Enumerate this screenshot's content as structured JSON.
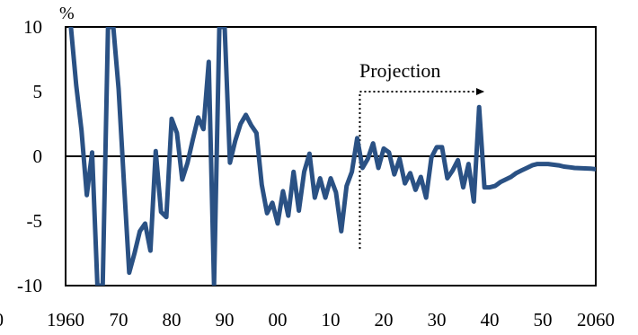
{
  "chart_data": {
    "type": "line",
    "title": "",
    "xlabel": "",
    "ylabel": "",
    "y_unit": "%",
    "xlim": [
      1960,
      2060
    ],
    "ylim": [
      -10,
      10
    ],
    "x_ticks": [
      "1960",
      "70",
      "80",
      "90",
      "00",
      "10",
      "20",
      "30",
      "40",
      "50",
      "2060"
    ],
    "y_ticks": [
      "10",
      "5",
      "0",
      "-5",
      "-10"
    ],
    "partial_left_tick": "0",
    "grid": false,
    "zero_line": true,
    "annotation": {
      "text": "Projection",
      "x": 2015.5
    },
    "series": [
      {
        "color": "#2a5184",
        "x": [
          1961,
          1962,
          1963,
          1964,
          1965,
          1966,
          1967,
          1968,
          1969,
          1970,
          1971,
          1972,
          1973,
          1974,
          1975,
          1976,
          1977,
          1978,
          1979,
          1980,
          1981,
          1982,
          1983,
          1984,
          1985,
          1986,
          1987,
          1988,
          1989,
          1990,
          1991,
          1992,
          1993,
          1994,
          1995,
          1996,
          1997,
          1998,
          1999,
          2000,
          2001,
          2002,
          2003,
          2004,
          2005,
          2006,
          2007,
          2008,
          2009,
          2010,
          2011,
          2012,
          2013,
          2014,
          2015,
          2016,
          2017,
          2018,
          2019,
          2020,
          2021,
          2022,
          2023,
          2024,
          2025,
          2026,
          2027,
          2028,
          2029,
          2030,
          2031,
          2032,
          2033,
          2034,
          2035,
          2036,
          2037,
          2038,
          2039,
          2040,
          2041,
          2042,
          2043,
          2044,
          2045,
          2046,
          2047,
          2048,
          2049,
          2050,
          2051,
          2052,
          2053,
          2054,
          2055,
          2056,
          2057,
          2058,
          2059,
          2060
        ],
        "y": [
          10,
          5.5,
          2,
          -3,
          0.3,
          -10,
          -10,
          10,
          10,
          5.2,
          -2,
          -9,
          -7.5,
          -5.8,
          -5.2,
          -7.3,
          0.4,
          -4.3,
          -4.7,
          2.9,
          1.8,
          -1.8,
          -0.5,
          1.3,
          3,
          2.1,
          7.3,
          -10,
          10,
          10,
          -0.5,
          1.2,
          2.5,
          3.2,
          2.4,
          1.8,
          -2.2,
          -4.4,
          -3.6,
          -5.2,
          -2.7,
          -4.6,
          -1.2,
          -4.2,
          -1.2,
          0.2,
          -3.2,
          -1.7,
          -3.2,
          -1.7,
          -2.8,
          -5.8,
          -2.3,
          -1.2,
          1.4,
          -0.9,
          -0.2,
          1,
          -0.9,
          0.6,
          0.3,
          -1.4,
          -0.2,
          -2.1,
          -1.3,
          -2.6,
          -1.6,
          -3.2,
          -0.1,
          0.7,
          0.7,
          -1.7,
          -1.1,
          -0.3,
          -2.4,
          -0.6,
          -3.5,
          3.8,
          -2.4,
          -2.4,
          -2.3,
          -2,
          -1.8,
          -1.6,
          -1.3,
          -1.1,
          -0.9,
          -0.7,
          -0.6,
          -0.6,
          -0.6,
          -0.65,
          -0.7,
          -0.8,
          -0.85,
          -0.9,
          -0.92,
          -0.94,
          -0.95,
          -1
        ]
      }
    ]
  }
}
